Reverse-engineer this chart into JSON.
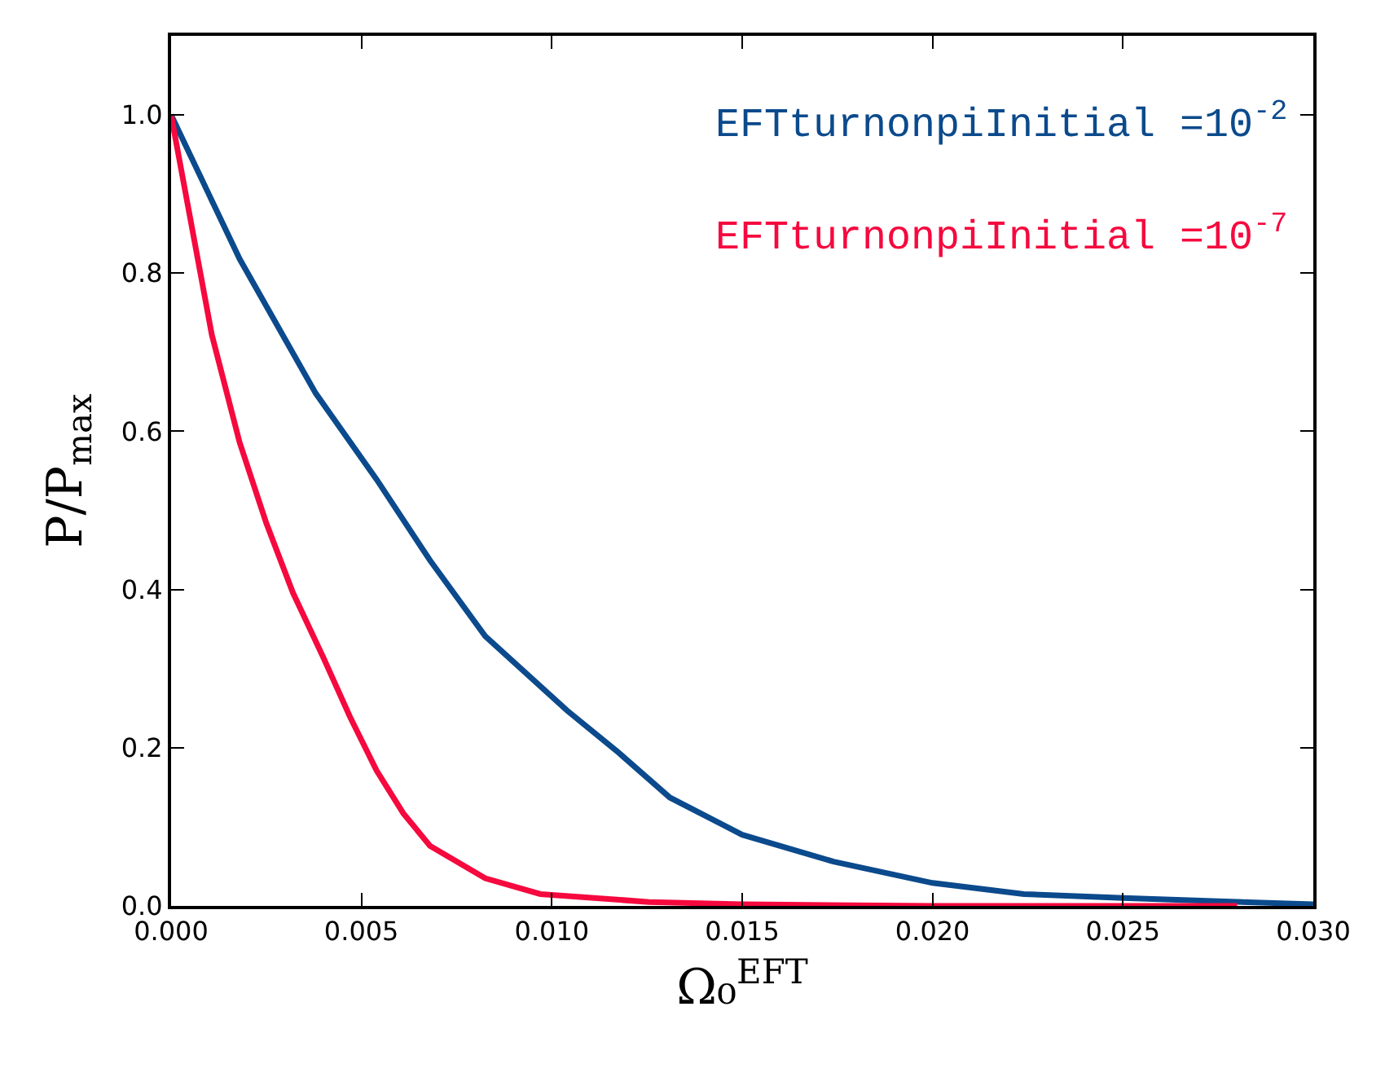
{
  "chart_data": {
    "type": "line",
    "xlabel": "Ω₀$^{EFT}$",
    "ylabel": "P/P$_{max}$",
    "series": [
      {
        "name": "EFTturnonpiInitial =10$^{-2}$",
        "color": "#0b4a8c",
        "x": [
          0,
          0.0018,
          0.0038,
          0.0054,
          0.0068,
          0.00825,
          0.0104,
          0.0117,
          0.0131,
          0.015,
          0.0174,
          0.02,
          0.0224,
          0.025,
          0.0275,
          0.03
        ],
        "values": [
          1.0,
          0.818,
          0.648,
          0.539,
          0.437,
          0.341,
          0.247,
          0.196,
          0.137,
          0.09,
          0.056,
          0.029,
          0.015,
          0.01,
          0.006,
          0.002
        ]
      },
      {
        "name": "EFTturnonpiInitial =10$^{-7}$",
        "color": "#f5093e",
        "x": [
          0,
          0.00107,
          0.0018,
          0.0025,
          0.0032,
          0.004,
          0.0047,
          0.0054,
          0.0061,
          0.0068,
          0.00825,
          0.0097,
          0.01255,
          0.015,
          0.02,
          0.028
        ],
        "values": [
          1.0,
          0.722,
          0.586,
          0.484,
          0.396,
          0.314,
          0.239,
          0.171,
          0.117,
          0.076,
          0.035,
          0.015,
          0.005,
          0.002,
          0,
          0
        ]
      }
    ],
    "xlim": [
      0,
      0.03
    ],
    "xticks": [
      {
        "value": 0,
        "label": "0.000"
      },
      {
        "value": 0.005,
        "label": "0.005"
      },
      {
        "value": 0.01,
        "label": "0.010"
      },
      {
        "value": 0.015,
        "label": "0.015"
      },
      {
        "value": 0.02,
        "label": "0.020"
      },
      {
        "value": 0.025,
        "label": "0.025"
      },
      {
        "value": 0.03,
        "label": "0.030"
      }
    ],
    "ylim": [
      0,
      1.1
    ],
    "yticks": [
      {
        "value": 0,
        "label": "0.0"
      },
      {
        "value": 0.2,
        "label": "0.2"
      },
      {
        "value": 0.4,
        "label": "0.4"
      },
      {
        "value": 0.6,
        "label": "0.6"
      },
      {
        "value": 0.8,
        "label": "0.8"
      },
      {
        "value": 1.0,
        "label": "1.0"
      }
    ],
    "legend": false,
    "marker": "none",
    "line_style": "solid"
  }
}
